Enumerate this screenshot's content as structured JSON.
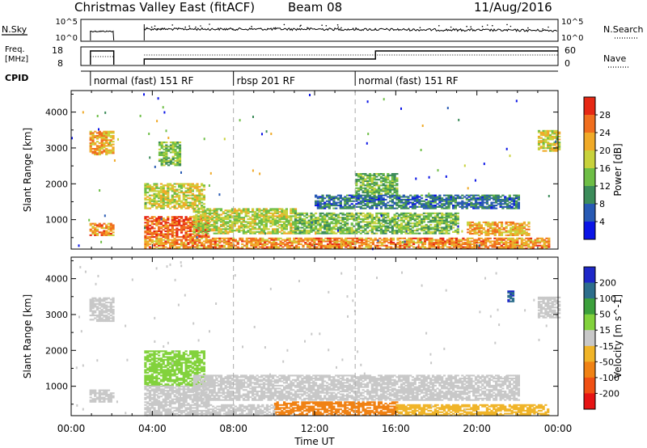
{
  "header": {
    "station": "Christmas Valley East (fitACF)",
    "beam": "Beam 08",
    "date": "11/Aug/2016"
  },
  "panels": {
    "nsky_label": "N.Sky",
    "nsearch_label": "N.Search",
    "freq_label_1": "Freq.",
    "freq_label_2": "[MHz]",
    "nave_label": "Nave",
    "cpid_label": "CPID",
    "nsky_ticks": [
      "10^5",
      "10^0"
    ],
    "nsearch_ticks": [
      "10^5",
      "10^0"
    ],
    "freq_ticks": [
      "18",
      "8"
    ],
    "nave_ticks": [
      "60",
      "0"
    ],
    "cpid_segments": [
      {
        "label": "normal (fast) 151 RF",
        "start_hour": 0.95
      },
      {
        "label": "rbsp 201 RF",
        "start_hour": 8.0
      },
      {
        "label": "normal (fast) 151 RF",
        "start_hour": 14.0
      }
    ]
  },
  "chart_data": [
    {
      "type": "heatmap",
      "name": "power",
      "ylabel": "Slant Range [km]",
      "xlabel": "Time UT",
      "x_ticks": [
        "00:00",
        "04:00",
        "08:00",
        "12:00",
        "16:00",
        "20:00",
        "00:00"
      ],
      "x_range_hours": [
        0,
        24
      ],
      "y_ticks": [
        1000,
        2000,
        3000,
        4000
      ],
      "y_range_km": [
        180,
        4600
      ],
      "colorbar": {
        "label": "Power [dB]",
        "ticks": [
          4,
          8,
          12,
          16,
          20,
          24,
          28
        ],
        "colors": [
          "#0a14e6",
          "#285ab4",
          "#3c8c5a",
          "#6ebe46",
          "#c8d23c",
          "#f0aa28",
          "#f06e1e",
          "#e62814"
        ]
      },
      "regions": [
        {
          "t0": 0.9,
          "t1": 2.1,
          "r0": 2800,
          "r1": 3450,
          "value": 22
        },
        {
          "t0": 0.9,
          "t1": 2.1,
          "r0": 550,
          "r1": 900,
          "value": 24
        },
        {
          "t0": 3.6,
          "t1": 6.8,
          "r0": 500,
          "r1": 1100,
          "value": 27
        },
        {
          "t0": 3.6,
          "t1": 6.5,
          "r0": 1300,
          "r1": 2000,
          "value": 18
        },
        {
          "t0": 4.3,
          "t1": 5.4,
          "r0": 2500,
          "r1": 3150,
          "value": 14
        },
        {
          "t0": 6.0,
          "t1": 11.0,
          "r0": 600,
          "r1": 1300,
          "value": 17
        },
        {
          "t0": 3.6,
          "t1": 23.5,
          "r0": 180,
          "r1": 500,
          "value": 24
        },
        {
          "t0": 11.0,
          "t1": 19.0,
          "r0": 600,
          "r1": 1200,
          "value": 14
        },
        {
          "t0": 12.0,
          "t1": 22.0,
          "r0": 1300,
          "r1": 1700,
          "value": 8
        },
        {
          "t0": 19.5,
          "t1": 22.5,
          "r0": 550,
          "r1": 950,
          "value": 22
        },
        {
          "t0": 14.0,
          "t1": 16.0,
          "r0": 1700,
          "r1": 2300,
          "value": 13
        },
        {
          "t0": 23.0,
          "t1": 24.0,
          "r0": 2900,
          "r1": 3500,
          "value": 19
        }
      ]
    },
    {
      "type": "heatmap",
      "name": "velocity",
      "ylabel": "Slant Range [km]",
      "xlabel": "Time UT",
      "x_ticks": [
        "00:00",
        "04:00",
        "08:00",
        "12:00",
        "16:00",
        "20:00",
        "00:00"
      ],
      "x_range_hours": [
        0,
        24
      ],
      "y_ticks": [
        1000,
        2000,
        3000,
        4000
      ],
      "y_range_km": [
        180,
        4600
      ],
      "colorbar": {
        "label": "Velocity [m s^-1]",
        "ticks": [
          200,
          100,
          50,
          15,
          -15,
          -50,
          -100,
          -200
        ],
        "colors": [
          "#1e28c8",
          "#2d6e8c",
          "#3ca03c",
          "#82d23c",
          "#c8c8c8",
          "#f0b428",
          "#f08214",
          "#f05014",
          "#e61414"
        ]
      },
      "regions": [
        {
          "t0": 0.9,
          "t1": 2.1,
          "r0": 2800,
          "r1": 3450,
          "value": 0
        },
        {
          "t0": 0.9,
          "t1": 2.1,
          "r0": 550,
          "r1": 900,
          "value": 0
        },
        {
          "t0": 3.6,
          "t1": 6.5,
          "r0": 1000,
          "r1": 2000,
          "value": 40
        },
        {
          "t0": 3.6,
          "t1": 6.8,
          "r0": 500,
          "r1": 1000,
          "value": 0
        },
        {
          "t0": 6.0,
          "t1": 22.0,
          "r0": 600,
          "r1": 1300,
          "value": 0
        },
        {
          "t0": 10.0,
          "t1": 16.0,
          "r0": 180,
          "r1": 550,
          "value": -60
        },
        {
          "t0": 3.6,
          "t1": 10.0,
          "r0": 180,
          "r1": 500,
          "value": 0
        },
        {
          "t0": 16.0,
          "t1": 23.5,
          "r0": 180,
          "r1": 500,
          "value": -30
        },
        {
          "t0": 23.0,
          "t1": 24.0,
          "r0": 2900,
          "r1": 3500,
          "value": 0
        },
        {
          "t0": 21.5,
          "t1": 21.8,
          "r0": 3350,
          "r1": 3650,
          "value": 200
        }
      ]
    }
  ]
}
